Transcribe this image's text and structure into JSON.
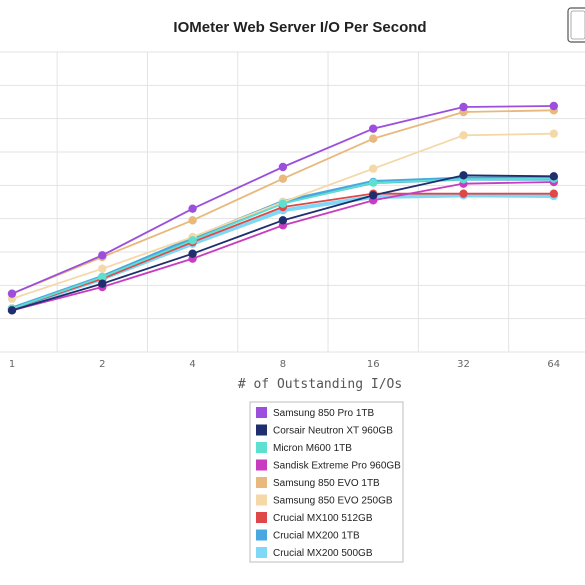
{
  "chart_data": {
    "type": "line",
    "title": "IOMeter Web Server I/O Per Second",
    "xlabel": "# of Outstanding I/Os",
    "ylabel": "",
    "categories": [
      "1",
      "2",
      "4",
      "8",
      "16",
      "32",
      "64"
    ],
    "ylim": [
      0,
      9
    ],
    "grid": true,
    "legend_placement": "bottom-center",
    "series": [
      {
        "name": "Samsung 850 Pro 1TB",
        "color": "#9b4fdc",
        "values": [
          1.75,
          2.9,
          4.3,
          5.55,
          6.7,
          7.35,
          7.38
        ]
      },
      {
        "name": "Corsair Neutron XT 960GB",
        "color": "#1e2e6e",
        "values": [
          1.25,
          2.05,
          2.95,
          3.95,
          4.7,
          5.3,
          5.27
        ]
      },
      {
        "name": "Micron M600 1TB",
        "color": "#5ee0d0",
        "values": [
          1.3,
          2.25,
          3.35,
          4.45,
          5.08,
          5.18,
          5.2
        ]
      },
      {
        "name": "Sandisk Extreme Pro 960GB",
        "color": "#c83cc0",
        "values": [
          1.25,
          1.95,
          2.8,
          3.8,
          4.55,
          5.05,
          5.1
        ]
      },
      {
        "name": "Samsung 850 EVO 1TB",
        "color": "#e8b87c",
        "values": [
          1.75,
          2.85,
          3.95,
          5.2,
          6.4,
          7.2,
          7.25
        ]
      },
      {
        "name": "Samsung 850 EVO 250GB",
        "color": "#f5d8a8",
        "values": [
          1.6,
          2.5,
          3.45,
          4.5,
          5.5,
          6.5,
          6.55
        ]
      },
      {
        "name": "Crucial MX100 512GB",
        "color": "#e04848",
        "values": [
          1.3,
          2.2,
          3.3,
          4.35,
          4.75,
          4.75,
          4.75
        ]
      },
      {
        "name": "Crucial MX200 1TB",
        "color": "#4aa8e0",
        "values": [
          1.3,
          2.25,
          3.4,
          4.5,
          5.1,
          5.2,
          5.2
        ]
      },
      {
        "name": "Crucial MX200 500GB",
        "color": "#7fd8f5",
        "values": [
          1.3,
          2.2,
          3.25,
          4.25,
          4.65,
          4.7,
          4.68
        ]
      }
    ]
  }
}
